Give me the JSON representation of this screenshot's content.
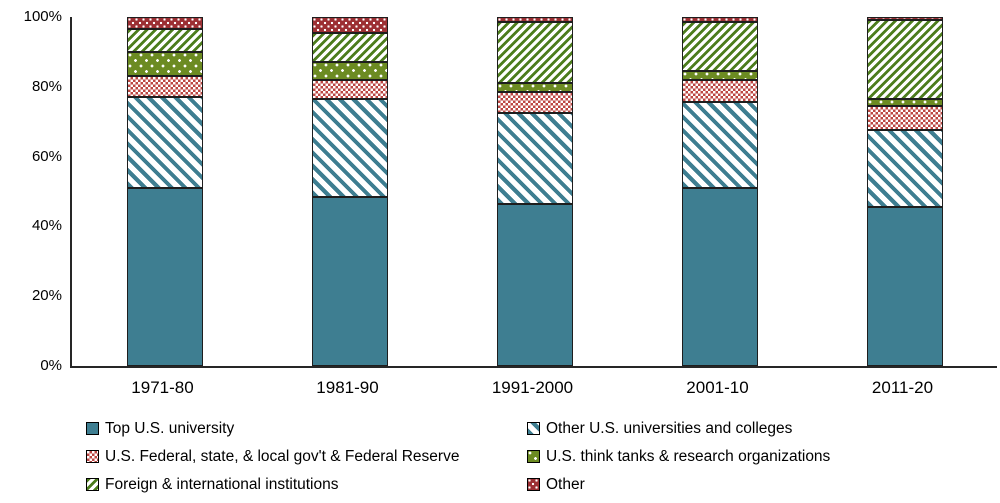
{
  "chart_data": {
    "type": "bar",
    "stacked": true,
    "title": "",
    "xlabel": "",
    "ylabel": "",
    "categories": [
      "1971-80",
      "1981-90",
      "1991-2000",
      "2001-10",
      "2011-20"
    ],
    "series": [
      {
        "name": "Top U.S. university",
        "css": "pat-top",
        "color": "#3e7e91",
        "pattern": "solid",
        "values": [
          51.0,
          48.5,
          46.5,
          51.0,
          45.5
        ]
      },
      {
        "name": "Other U.S. universities and colleges",
        "css": "pat-otheru",
        "color": "#3e7e91",
        "pattern": "diagonal-down-stripes",
        "values": [
          26.0,
          28.0,
          26.0,
          24.5,
          22.0
        ]
      },
      {
        "name": "U.S.  Federal, state, & local gov't & Federal Reserve",
        "css": "pat-gov",
        "color": "#bc4642",
        "pattern": "red-white-checker",
        "values": [
          6.0,
          5.5,
          6.0,
          6.5,
          7.0
        ]
      },
      {
        "name": "U.S. think tanks & research organizations",
        "css": "pat-think",
        "color": "#6c8b22",
        "pattern": "white-dots-on-olive",
        "values": [
          7.0,
          5.0,
          2.5,
          2.5,
          2.0
        ]
      },
      {
        "name": "Foreign & international institutions",
        "css": "pat-foreign",
        "color": "#4d7d1d",
        "pattern": "diagonal-up-stripes",
        "values": [
          6.5,
          8.5,
          17.5,
          14.0,
          22.5
        ]
      },
      {
        "name": "Other",
        "css": "pat-other",
        "color": "#9c2f33",
        "pattern": "white-dots-on-darkred",
        "values": [
          3.5,
          4.5,
          1.5,
          1.5,
          1.0
        ]
      }
    ],
    "y_ticks": [
      0,
      20,
      40,
      60,
      80,
      100
    ],
    "y_tick_labels": [
      "0%",
      "20%",
      "40%",
      "60%",
      "80%",
      "100%"
    ],
    "ylim": [
      0,
      100
    ],
    "grid": false,
    "legend_position": "bottom",
    "legend_columns": [
      [
        0,
        2,
        4
      ],
      [
        1,
        3,
        5
      ]
    ],
    "axis_color": "#262626",
    "segment_border_color": "#1e1e1e"
  }
}
